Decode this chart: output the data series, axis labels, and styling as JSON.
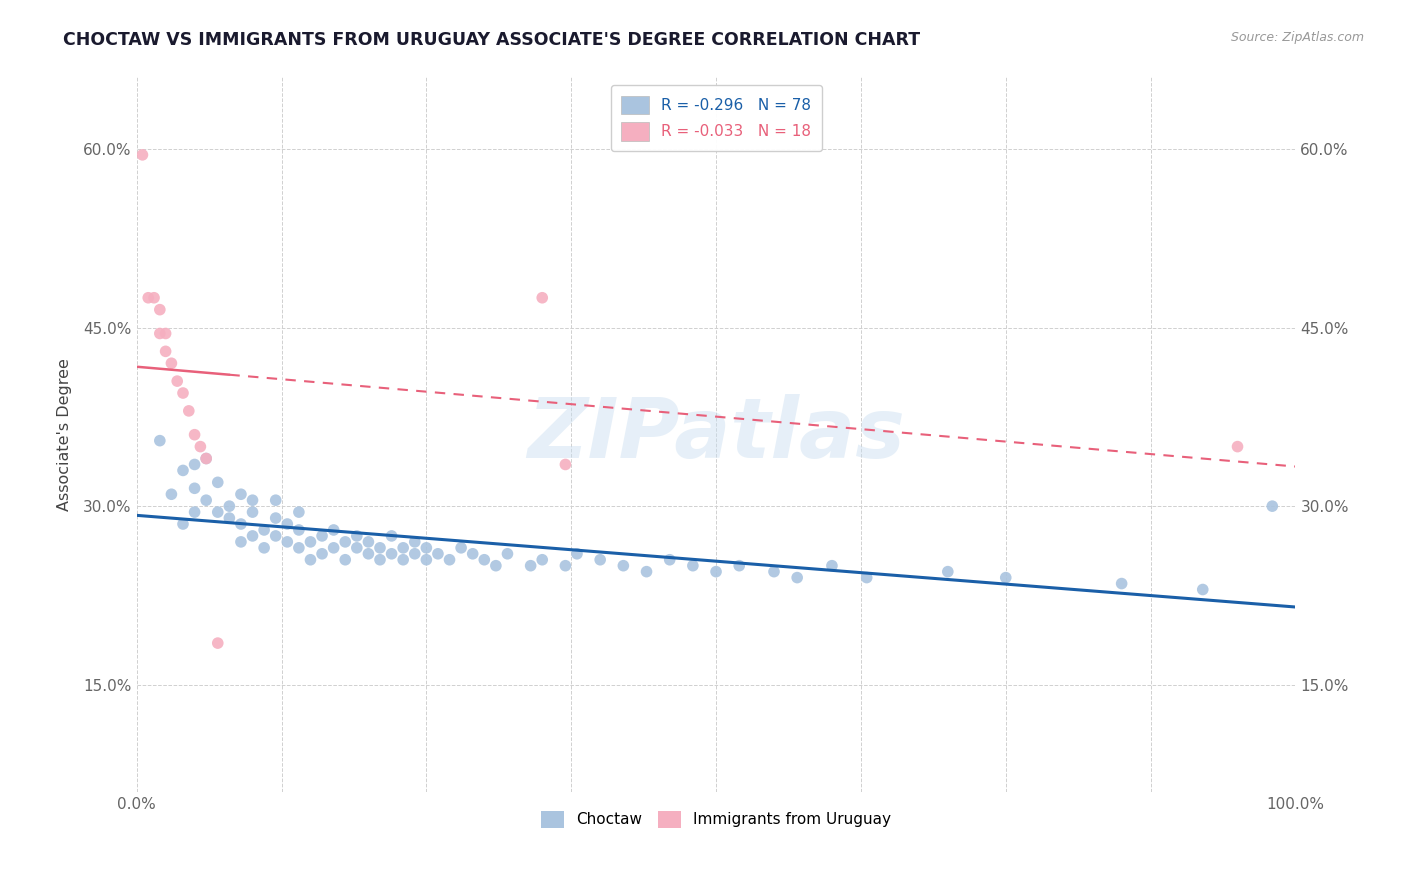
{
  "title": "CHOCTAW VS IMMIGRANTS FROM URUGUAY ASSOCIATE'S DEGREE CORRELATION CHART",
  "source_text": "Source: ZipAtlas.com",
  "ylabel": "Associate's Degree",
  "watermark": "ZIPatlas",
  "legend_r1": "R = -0.296",
  "legend_n1": "N = 78",
  "legend_r2": "R = -0.033",
  "legend_n2": "N = 18",
  "xlim": [
    0.0,
    1.0
  ],
  "ylim": [
    0.06,
    0.66
  ],
  "xticks": [
    0.0,
    0.125,
    0.25,
    0.375,
    0.5,
    0.625,
    0.75,
    0.875,
    1.0
  ],
  "xtick_labels": [
    "0.0%",
    "",
    "",
    "",
    "",
    "",
    "",
    "",
    "100.0%"
  ],
  "ytick_labels": [
    "15.0%",
    "30.0%",
    "45.0%",
    "60.0%"
  ],
  "yticks": [
    0.15,
    0.3,
    0.45,
    0.6
  ],
  "blue_color": "#aac4df",
  "pink_color": "#f5afc0",
  "blue_line_color": "#1a5fa8",
  "pink_line_color": "#e8607a",
  "blue_legend_color": "#aac4df",
  "pink_legend_color": "#f5afc0",
  "choctaw_x": [
    0.02,
    0.03,
    0.04,
    0.04,
    0.05,
    0.05,
    0.05,
    0.06,
    0.06,
    0.07,
    0.07,
    0.08,
    0.08,
    0.09,
    0.09,
    0.09,
    0.1,
    0.1,
    0.1,
    0.11,
    0.11,
    0.12,
    0.12,
    0.12,
    0.13,
    0.13,
    0.14,
    0.14,
    0.14,
    0.15,
    0.15,
    0.16,
    0.16,
    0.17,
    0.17,
    0.18,
    0.18,
    0.19,
    0.19,
    0.2,
    0.2,
    0.21,
    0.21,
    0.22,
    0.22,
    0.23,
    0.23,
    0.24,
    0.24,
    0.25,
    0.25,
    0.26,
    0.27,
    0.28,
    0.29,
    0.3,
    0.31,
    0.32,
    0.34,
    0.35,
    0.37,
    0.38,
    0.4,
    0.42,
    0.44,
    0.46,
    0.48,
    0.5,
    0.52,
    0.55,
    0.57,
    0.6,
    0.63,
    0.7,
    0.75,
    0.85,
    0.92,
    0.98
  ],
  "choctaw_y": [
    0.355,
    0.31,
    0.285,
    0.33,
    0.315,
    0.295,
    0.335,
    0.305,
    0.34,
    0.295,
    0.32,
    0.29,
    0.3,
    0.285,
    0.27,
    0.31,
    0.275,
    0.295,
    0.305,
    0.28,
    0.265,
    0.29,
    0.275,
    0.305,
    0.27,
    0.285,
    0.265,
    0.28,
    0.295,
    0.27,
    0.255,
    0.275,
    0.26,
    0.28,
    0.265,
    0.27,
    0.255,
    0.265,
    0.275,
    0.26,
    0.27,
    0.255,
    0.265,
    0.26,
    0.275,
    0.255,
    0.265,
    0.26,
    0.27,
    0.255,
    0.265,
    0.26,
    0.255,
    0.265,
    0.26,
    0.255,
    0.25,
    0.26,
    0.25,
    0.255,
    0.25,
    0.26,
    0.255,
    0.25,
    0.245,
    0.255,
    0.25,
    0.245,
    0.25,
    0.245,
    0.24,
    0.25,
    0.24,
    0.245,
    0.24,
    0.235,
    0.23,
    0.3
  ],
  "uruguay_x": [
    0.005,
    0.01,
    0.015,
    0.02,
    0.02,
    0.025,
    0.025,
    0.03,
    0.035,
    0.04,
    0.045,
    0.05,
    0.055,
    0.06,
    0.07,
    0.35,
    0.37,
    0.95
  ],
  "uruguay_y": [
    0.595,
    0.475,
    0.475,
    0.465,
    0.445,
    0.445,
    0.43,
    0.42,
    0.405,
    0.395,
    0.38,
    0.36,
    0.35,
    0.34,
    0.185,
    0.475,
    0.335,
    0.35
  ]
}
